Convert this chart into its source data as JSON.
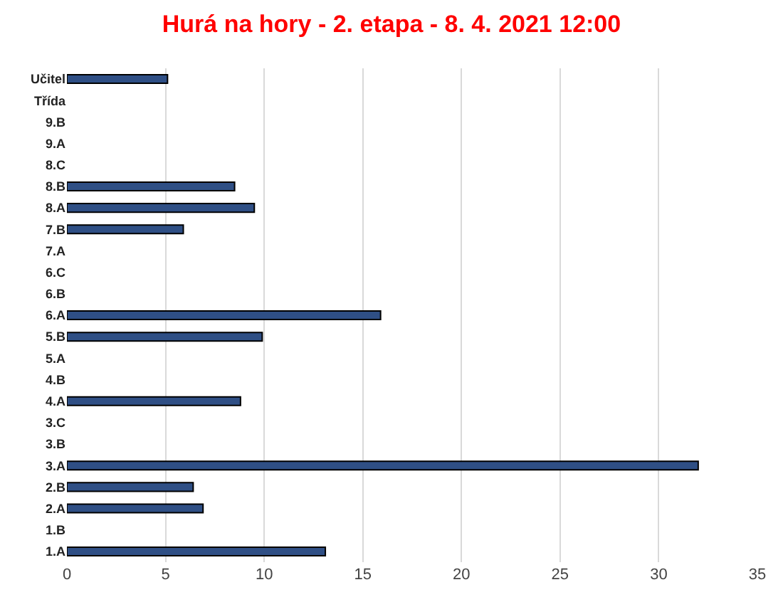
{
  "chart_data": {
    "type": "bar",
    "orientation": "horizontal",
    "title": "Hurá na hory - 2. etapa - 8. 4. 2021 12:00",
    "categories": [
      "Učitel",
      "Třída",
      "9.B",
      "9.A",
      "8.C",
      "8.B",
      "8.A",
      "7.B",
      "7.A",
      "6.C",
      "6.B",
      "6.A",
      "5.B",
      "5.A",
      "4.B",
      "4.A",
      "3.C",
      "3.B",
      "3.A",
      "2.B",
      "2.A",
      "1.B",
      "1.A"
    ],
    "values": [
      5.1,
      0,
      0,
      0,
      0,
      8.5,
      9.5,
      5.9,
      0,
      0,
      0,
      15.9,
      9.9,
      0,
      0,
      8.8,
      0,
      0,
      32.0,
      6.4,
      6.9,
      0,
      13.1
    ],
    "color": "#2f4f85",
    "xlim": [
      0,
      35
    ],
    "xticks": [
      0,
      5,
      10,
      15,
      20,
      25,
      30,
      35
    ],
    "grid": "x"
  }
}
